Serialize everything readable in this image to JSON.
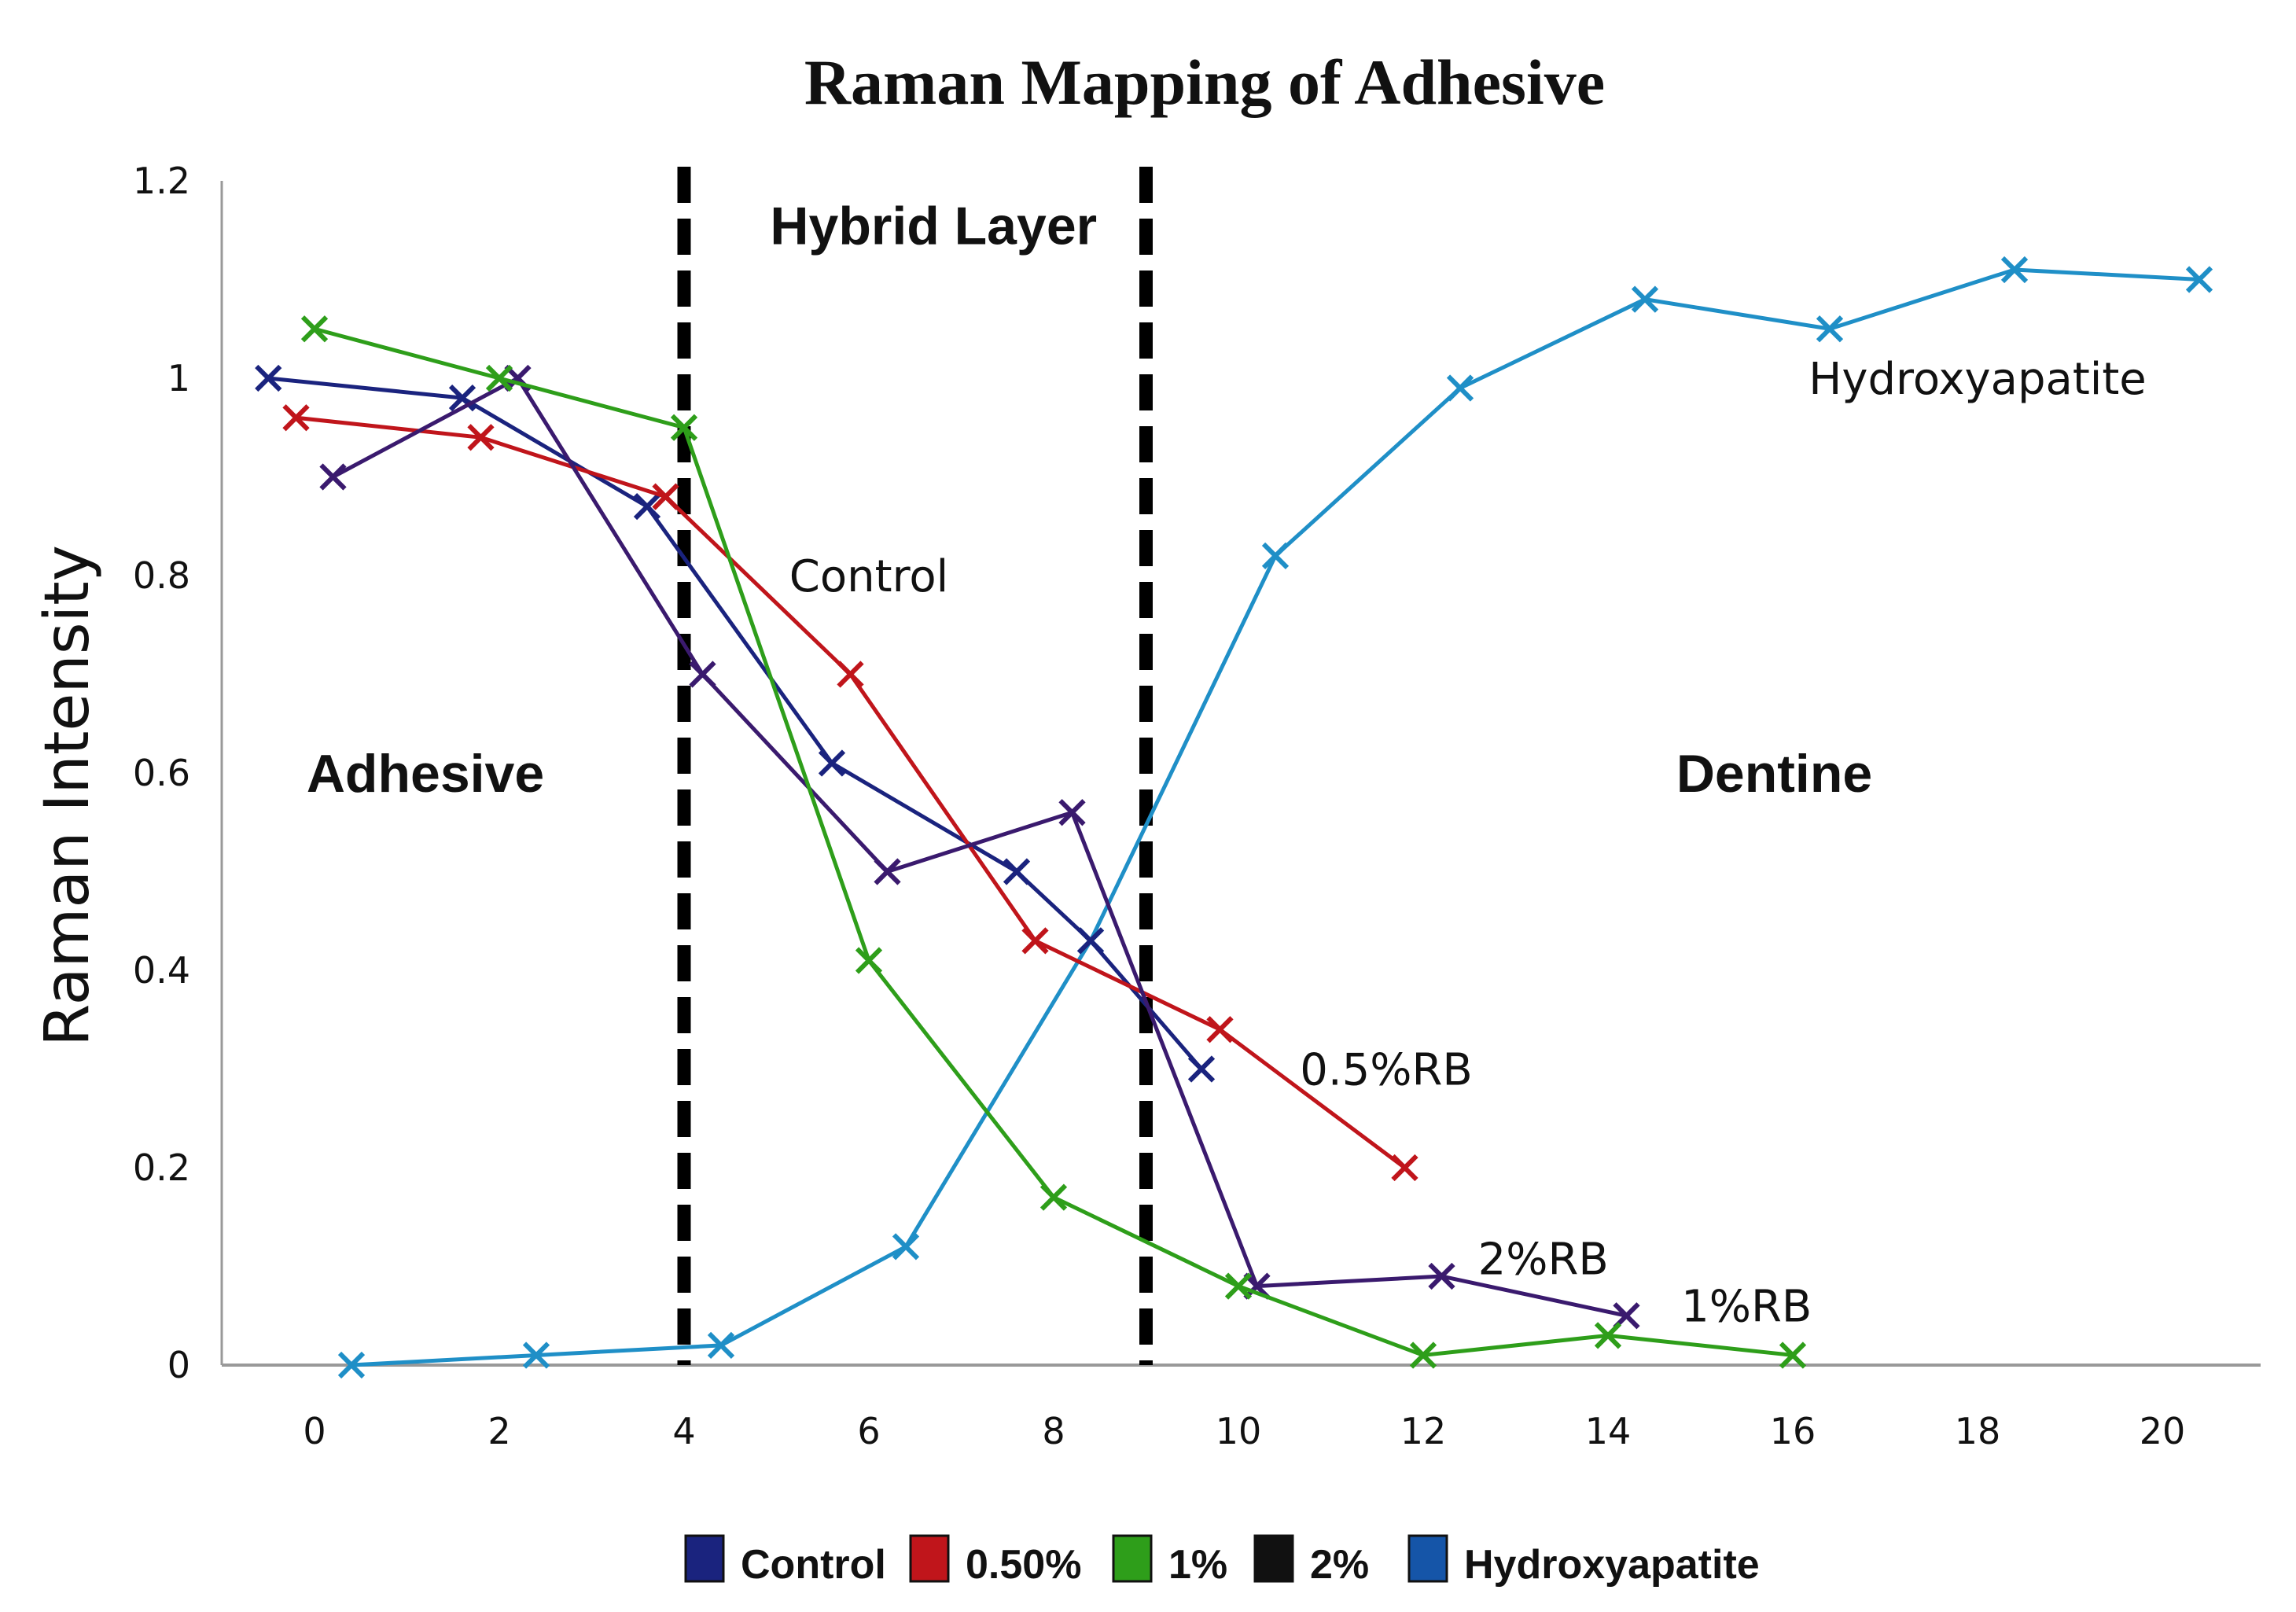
{
  "chart_data": {
    "type": "line",
    "title": "Raman Mapping of Adhesive",
    "xlabel": "",
    "ylabel": "Raman Intensity",
    "xlim": [
      -1,
      21
    ],
    "ylim": [
      0,
      1.2
    ],
    "xticks": [
      "0",
      "2",
      "4",
      "6",
      "8",
      "10",
      "12",
      "14",
      "16",
      "18",
      "20"
    ],
    "yticks": [
      "0",
      "0.2",
      "0.4",
      "0.6",
      "0.8",
      "1",
      "1.2"
    ],
    "grid": false,
    "legend_position": "bottom",
    "region_dividers": [
      4,
      9
    ],
    "regions": [
      {
        "label": "Adhesive",
        "x": 1.2,
        "y": 0.6
      },
      {
        "label": "Hybrid Layer",
        "x": 6.7,
        "y": 1.155
      },
      {
        "label": "Dentine",
        "x": 15.8,
        "y": 0.6
      }
    ],
    "annotations": [
      {
        "text": "Control",
        "x": 6.0,
        "y": 0.8
      },
      {
        "text": "Hydroxyapatite",
        "x": 18.0,
        "y": 1.0
      },
      {
        "text": "0.5%RB",
        "x": 11.6,
        "y": 0.3
      },
      {
        "text": "2%RB",
        "x": 13.3,
        "y": 0.108
      },
      {
        "text": "1%RB",
        "x": 15.5,
        "y": 0.06
      }
    ],
    "series": [
      {
        "name": "Control",
        "legend": "Control",
        "color": "#1a237e",
        "x": [
          -0.5,
          1.6,
          3.6,
          5.6,
          7.6,
          8.4,
          9.6
        ],
        "y": [
          1.0,
          0.98,
          0.87,
          0.61,
          0.5,
          0.43,
          0.3
        ]
      },
      {
        "name": "0.50%",
        "legend": "0.50%",
        "color": "#c0151b",
        "x": [
          -0.2,
          1.8,
          3.8,
          5.8,
          7.8,
          9.8,
          11.8
        ],
        "y": [
          0.96,
          0.94,
          0.88,
          0.7,
          0.43,
          0.34,
          0.2
        ]
      },
      {
        "name": "1%",
        "legend": "1%",
        "color": "#2e9e1a",
        "x": [
          0.0,
          2.0,
          4.0,
          6.0,
          8.0,
          10.0,
          12.0,
          14.0,
          16.0
        ],
        "y": [
          1.05,
          1.0,
          0.95,
          0.41,
          0.17,
          0.08,
          0.01,
          0.03,
          0.01
        ]
      },
      {
        "name": "2%",
        "legend": "2%",
        "color": "#3a1a6e",
        "x": [
          0.2,
          2.2,
          4.2,
          6.2,
          8.2,
          10.2,
          12.2,
          14.2
        ],
        "y": [
          0.9,
          1.0,
          0.7,
          0.5,
          0.56,
          0.08,
          0.09,
          0.05
        ]
      },
      {
        "name": "Hydroxyapatite",
        "legend": "Hydroxyapatite",
        "color": "#1f8fc7",
        "x": [
          0.4,
          2.4,
          4.4,
          6.4,
          8.4,
          10.4,
          12.4,
          14.4,
          16.4,
          18.4,
          20.4
        ],
        "y": [
          0.0,
          0.01,
          0.02,
          0.12,
          0.43,
          0.82,
          0.99,
          1.08,
          1.05,
          1.11,
          1.1
        ]
      }
    ],
    "legend_colors": [
      "#1a237e",
      "#c0151b",
      "#2e9e1a",
      "#111111",
      "#1555a8"
    ]
  }
}
